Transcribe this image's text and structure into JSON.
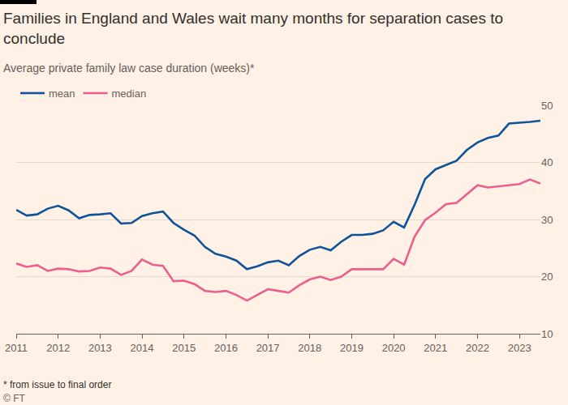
{
  "chart_data": {
    "type": "line",
    "title": "Families in England and Wales wait many months for separation cases to conclude",
    "subtitle": "Average private family law case duration (weeks)*",
    "annotations": [
      "* from issue to final order"
    ],
    "source": "© FT",
    "x": [
      2011,
      2011.25,
      2011.5,
      2011.75,
      2012,
      2012.25,
      2012.5,
      2012.75,
      2013,
      2013.25,
      2013.5,
      2013.75,
      2014,
      2014.25,
      2014.5,
      2014.75,
      2015,
      2015.25,
      2015.5,
      2015.75,
      2016,
      2016.25,
      2016.5,
      2016.75,
      2017,
      2017.25,
      2017.5,
      2017.75,
      2018,
      2018.25,
      2018.5,
      2018.75,
      2019,
      2019.25,
      2019.5,
      2019.75,
      2020,
      2020.25,
      2020.5,
      2020.75,
      2021,
      2021.25,
      2021.5,
      2021.75,
      2022,
      2022.25,
      2022.5,
      2022.75,
      2023,
      2023.25,
      2023.5
    ],
    "series": [
      {
        "name": "mean",
        "color": "#0f5499",
        "values": [
          31.7,
          30.7,
          30.9,
          31.9,
          32.4,
          31.6,
          30.2,
          30.8,
          30.9,
          31.1,
          29.3,
          29.4,
          30.6,
          31.1,
          31.4,
          29.4,
          28.2,
          27.2,
          25.2,
          24.0,
          23.5,
          22.8,
          21.3,
          21.8,
          22.5,
          22.8,
          22.0,
          23.6,
          24.7,
          25.2,
          24.6,
          26.1,
          27.3,
          27.3,
          27.5,
          28.1,
          29.6,
          28.6,
          32.6,
          37.1,
          38.8,
          39.6,
          40.3,
          42.2,
          43.5,
          44.3,
          44.7,
          46.8,
          46.9,
          47.1,
          47.3
        ]
      },
      {
        "name": "median",
        "color": "#eb5e8d",
        "values": [
          22.3,
          21.7,
          22.0,
          21.0,
          21.4,
          21.3,
          20.9,
          21.0,
          21.6,
          21.4,
          20.3,
          21.0,
          23.0,
          22.1,
          21.9,
          19.2,
          19.3,
          18.7,
          17.5,
          17.3,
          17.5,
          16.8,
          15.8,
          16.8,
          17.8,
          17.5,
          17.2,
          18.5,
          19.5,
          20.0,
          19.4,
          20.0,
          21.3,
          21.3,
          21.3,
          21.3,
          23.1,
          22.1,
          27.0,
          29.9,
          31.2,
          32.7,
          32.9,
          34.4,
          36.0,
          35.6,
          35.8,
          36.0,
          36.2,
          37.0,
          36.3
        ]
      }
    ],
    "xlim": [
      2011,
      2023.5
    ],
    "xticks": [
      2011,
      2012,
      2013,
      2014,
      2015,
      2016,
      2017,
      2018,
      2019,
      2020,
      2021,
      2022,
      2023
    ],
    "ylim": [
      10,
      50
    ],
    "yticks": [
      10,
      20,
      30,
      40,
      50
    ],
    "grid": true,
    "legend": "top-left"
  }
}
